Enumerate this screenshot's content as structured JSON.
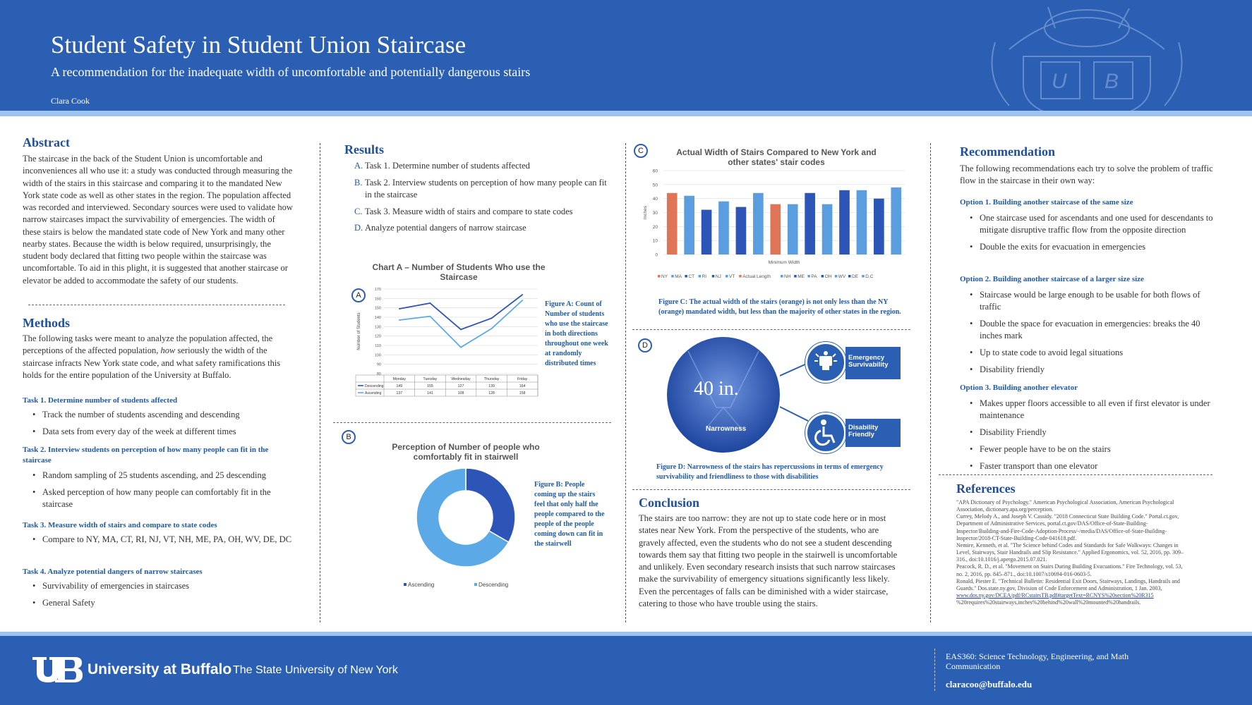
{
  "header": {
    "title": "Student Safety in Student Union Staircase",
    "subtitle": "A recommendation for the inadequate width of uncomfortable and potentially dangerous stairs",
    "author": "Clara Cook"
  },
  "abstract": {
    "heading": "Abstract",
    "text": "The staircase in the back of the Student Union is uncomfortable and inconveniences all who use it: a study was conducted through measuring the width of the stairs in this staircase and comparing it to the mandated New York state code as well as other states in the region. The population affected was recorded and interviewed. Secondary sources were used to validate how narrow staircases impact the survivability of emergencies. The width of these stairs is below the mandated state code of New York and many other nearby states. Because the width is below required, unsurprisingly, the student body declared that fitting two people within the staircase was uncomfortable. To aid in this plight, it is suggested that another staircase or elevator be added to accommodate the safety of our students."
  },
  "methods": {
    "heading": "Methods",
    "intro_a": "The following tasks were meant to analyze the population affected, the perceptions of the affected population, ",
    "intro_em": "how",
    "intro_b": " seriously the width of the staircase infracts New York state code, and what safety ramifications this holds for the entire population of the University at Buffalo.",
    "tasks": [
      {
        "title": "Task 1. Determine number of students affected",
        "bullets": [
          "Track the number of students ascending and descending",
          "Data sets from every day of the week at different times"
        ]
      },
      {
        "title": "Task 2. Interview students on perception of how many people can fit in the staircase",
        "bullets": [
          "Random sampling of 25 students ascending, and 25 descending",
          "Asked perception of how many people can comfortably fit in the staircase"
        ]
      },
      {
        "title": "Task 3. Measure width of stairs and compare to state codes",
        "bullets": [
          "Compare to NY, MA, CT, RI, NJ, VT, NH, ME, PA, OH, WV, DE, DC"
        ]
      },
      {
        "title": "Task 4. Analyze potential dangers of narrow staircases",
        "bullets": [
          "Survivability of emergencies in staircases",
          "General Safety"
        ]
      }
    ]
  },
  "results": {
    "heading": "Results",
    "items": [
      {
        "letter": "A.",
        "text": "Task 1. Determine number of students affected"
      },
      {
        "letter": "B.",
        "text": "Task 2. Interview students on perception of how many people can fit in the staircase"
      },
      {
        "letter": "C.",
        "text": "Task 3. Measure width of stairs and compare to state codes"
      },
      {
        "letter": "D.",
        "text": "Analyze potential dangers of narrow staircase"
      }
    ]
  },
  "figure_a": {
    "label": "A",
    "caption": "Figure A: Count of Number of students who use the staircase in both directions throughout one week at randomly distributed times"
  },
  "figure_b": {
    "label": "B",
    "caption": "Figure B: People coming up the stairs feel that only half the people compared to the people of the people coming down can fit in the stairwell"
  },
  "figure_c": {
    "label": "C",
    "caption": "Figure C: The actual width of the stairs (orange) is not only less than the NY (orange) mandated width, but less than the majority of other states in the region."
  },
  "figure_d": {
    "label": "D",
    "big_text": "40 in.",
    "narrowness": "Narrowness",
    "emergency": "Emergency Survivability",
    "disability": "Disability Friendly",
    "caption": "Figure D: Narrowness of the stairs has repercussions in terms of emergency survivability and friendliness to those with disabilities"
  },
  "chart_data": [
    {
      "type": "line",
      "title": "Chart A – Number of Students Who use the Staircase",
      "xlabel": "",
      "ylabel": "Number of Students",
      "categories": [
        "Monday",
        "Tuesday",
        "Wednesday",
        "Thursday",
        "Friday"
      ],
      "series": [
        {
          "name": "Descending",
          "values": [
            149,
            155,
            127,
            139,
            164
          ]
        },
        {
          "name": "Ascending",
          "values": [
            137,
            141,
            108,
            128,
            158
          ]
        }
      ],
      "ylim": [
        80,
        170
      ],
      "yticks": [
        80,
        90,
        100,
        110,
        120,
        130,
        140,
        150,
        160,
        170
      ],
      "grid": true,
      "legend": "data-table"
    },
    {
      "type": "pie",
      "title": "Perception of  Number of people who comfortably fit in stairwell",
      "categories": [
        "Ascending",
        "Descending"
      ],
      "values": [
        1,
        2
      ],
      "donut": true,
      "legend": "bottom"
    },
    {
      "type": "bar",
      "title": "Actual Width of Stairs Compared to New York and other states' stair codes",
      "xlabel": "Minimum Width",
      "ylabel": "Inches",
      "categories": [
        "NY",
        "MA",
        "CT",
        "RI",
        "NJ",
        "VT",
        "Actual Length",
        "NH",
        "ME",
        "PA",
        "OH",
        "WV",
        "DE",
        "D.C"
      ],
      "values": [
        44,
        42,
        32,
        38,
        34,
        44,
        36,
        36,
        44,
        36,
        46,
        46,
        40,
        48
      ],
      "ylim": [
        0,
        60
      ],
      "yticks": [
        0,
        10,
        20,
        30,
        40,
        50,
        60
      ],
      "grid": true,
      "legend": "bottom",
      "colors": {
        "highlight": "#e07457",
        "dark": "#2d55b8",
        "light": "#5b9ee0"
      }
    }
  ],
  "conclusion": {
    "heading": "Conclusion",
    "text": "The stairs are too narrow: they are not up to state code here or in most states near New York. From the perspective of the students, who are gravely affected, even the students who do not see a student descending towards them say that fitting two people in the stairwell is uncomfortable and unlikely. Even secondary research insists that such narrow staircases make the survivability of emergency situations significantly less likely. Even the percentages of falls can be diminished with a wider staircase, catering to those who have trouble using the stairs."
  },
  "recommendation": {
    "heading": "Recommendation",
    "intro": "The following recommendations each try to solve the problem of traffic flow in the staircase in their own way:",
    "options": [
      {
        "title": "Option 1. Building another staircase of the same size",
        "bullets": [
          "One staircase used for ascendants and one used for descendants to mitigate disruptive traffic flow from the opposite direction",
          "Double the exits for evacuation in emergencies"
        ]
      },
      {
        "title": "Option 2. Building another staircase of a larger size size",
        "bullets": [
          "Staircase would be large enough to be usable for both flows of traffic",
          "Double the space for evacuation in emergencies: breaks the 40 inches mark",
          "Up to state code to avoid legal situations",
          "Disability friendly"
        ]
      },
      {
        "title": "Option 3. Building another elevator",
        "bullets": [
          "Makes upper floors accessible to all even if first elevator is under maintenance",
          "Disability Friendly",
          "Fewer people have to be on the stairs",
          "Faster transport than one elevator"
        ]
      }
    ]
  },
  "references": {
    "heading": "References",
    "entries": [
      "\"APA Dictionary of Psychology.\" American Psychological Association, American Psychological Association, dictionary.apa.org/perception.",
      "Currey, Melody A., and Joseph V. Cassidy. \"2018 Connecticut State Building Code.\" Portal.ct.gov, Department of Administrative Services, portal.ct.gov/DAS/Office-of-State-Building-Inspector/Building-and-Fire-Code-Adoption-Process/-/media/DAS/Office-of-State-Building-Inspector/2018-CT-State-Building-Code-041618.pdf.",
      "Nemire, Kenneth, et al. \"The Science behind Codes and Standards for Safe Walkways: Changes in Level, Stairways, Stair Handrails and Slip Resistance.\" Applied Ergonomics, vol. 52, 2016, pp. 309–316., doi:10.1016/j.apergo.2015.07.021.",
      "Peacock, R. D., et al. \"Movement on Stairs During Building Evacuations.\" Fire Technology, vol. 53, no. 2, 2016, pp. 845–871., doi:10.1007/s10694-016-0603-5.",
      "Ronald, Piester E. \"Technical Bulletin: Residential Exit Doors, Stairways, Landings, Handrails and Guards.\" Dos.state.ny.gov, Division of Code Enforcement and Administration, 1 Jan. 2003,"
    ],
    "link": "www.dos.ny.gov/DCEA/pdf/RCstairsTB.pdf#targetText=RCNYS%20section%20R315",
    "link_tail": "%20requires%20stairways,inches%20behind%20wall%20mounted%20handrails."
  },
  "footer": {
    "university": "University at Buffalo",
    "tagline": "The State University of New York",
    "course": "EAS360: Science Technology, Engineering, and Math Communication",
    "email": "claracoo@buffalo.edu"
  },
  "colors": {
    "brand_blue": "#2b5fb4",
    "light_blue": "#9cc4ee",
    "heading_blue": "#1f4f9c"
  }
}
